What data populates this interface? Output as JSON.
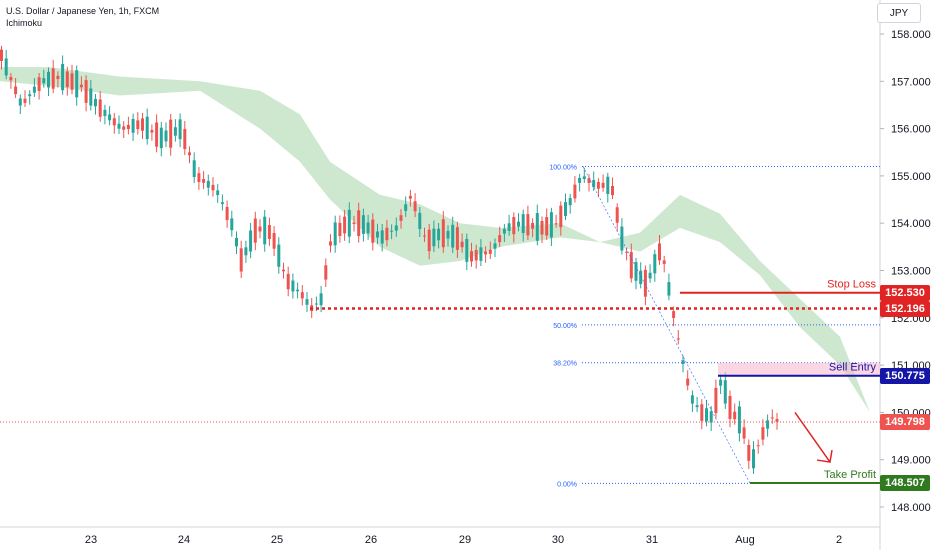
{
  "header": {
    "title": "U.S. Dollar / Japanese Yen, 1h, FXCM",
    "indicator": "Ichimoku",
    "currency": "JPY"
  },
  "chart_data": {
    "type": "candlestick",
    "y_axis": {
      "ticks": [
        "158.000",
        "157.000",
        "156.000",
        "155.000",
        "154.000",
        "153.000",
        "152.000",
        "151.000",
        "150.000",
        "149.000",
        "148.000"
      ],
      "range": [
        147.7,
        158.3
      ]
    },
    "x_axis": {
      "ticks": [
        "23",
        "24",
        "25",
        "26",
        "29",
        "30",
        "31",
        "Aug",
        "2"
      ]
    },
    "fibonacci": [
      {
        "label": "100.00%",
        "price": 155.2
      },
      {
        "label": "50.00%",
        "price": 151.85
      },
      {
        "label": "38.20%",
        "price": 151.05
      },
      {
        "label": "0.00%",
        "price": 148.5
      }
    ],
    "levels": [
      {
        "name": "Stop Loss",
        "price": 152.53,
        "label": "152.530",
        "color": "#e02424"
      },
      {
        "name": "",
        "price": 152.196,
        "label": "152.196",
        "color": "#e02424"
      },
      {
        "name": "Sell Entry",
        "price": 150.775,
        "label": "150.775",
        "color": "#1515a6"
      },
      {
        "name": "",
        "price": 149.798,
        "label": "149.798",
        "color": "#ef5350"
      },
      {
        "name": "Take Profit",
        "price": 148.507,
        "label": "148.507",
        "color": "#2f7a1f"
      }
    ],
    "annotations": {
      "stop_loss": "Stop Loss",
      "sell_entry": "Sell Entry",
      "take_profit": "Take Profit"
    },
    "colors": {
      "up": "#26a69a",
      "down": "#ef5350",
      "cloud_bull": "#a5d6a7",
      "cloud_bear": "#ffcdd2",
      "fib": "#2962ff"
    }
  }
}
